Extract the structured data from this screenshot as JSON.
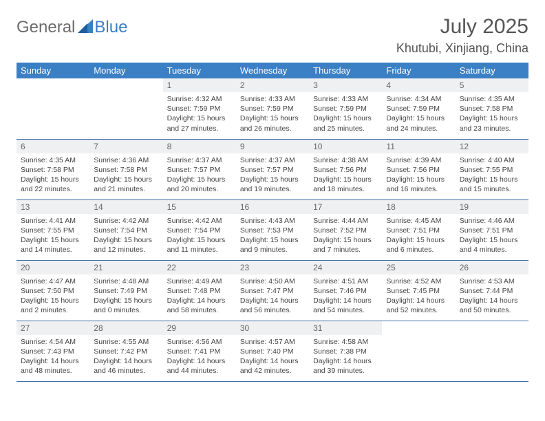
{
  "logo": {
    "general": "General",
    "blue": "Blue"
  },
  "title": "July 2025",
  "location": "Khutubi, Xinjiang, China",
  "colors": {
    "headerBg": "#3b7fc4",
    "headerText": "#ffffff",
    "daynumBg": "#eef0f2",
    "daynumText": "#666666",
    "bodyText": "#444444",
    "rowBorder": "#3b6fa5",
    "logoGray": "#6b6b6b",
    "logoBlue": "#3b7fc4",
    "titleColor": "#555555"
  },
  "dayHeaders": [
    "Sunday",
    "Monday",
    "Tuesday",
    "Wednesday",
    "Thursday",
    "Friday",
    "Saturday"
  ],
  "weeks": [
    [
      null,
      null,
      {
        "n": "1",
        "sr": "4:32 AM",
        "ss": "7:59 PM",
        "dl": "15 hours and 27 minutes."
      },
      {
        "n": "2",
        "sr": "4:33 AM",
        "ss": "7:59 PM",
        "dl": "15 hours and 26 minutes."
      },
      {
        "n": "3",
        "sr": "4:33 AM",
        "ss": "7:59 PM",
        "dl": "15 hours and 25 minutes."
      },
      {
        "n": "4",
        "sr": "4:34 AM",
        "ss": "7:59 PM",
        "dl": "15 hours and 24 minutes."
      },
      {
        "n": "5",
        "sr": "4:35 AM",
        "ss": "7:58 PM",
        "dl": "15 hours and 23 minutes."
      }
    ],
    [
      {
        "n": "6",
        "sr": "4:35 AM",
        "ss": "7:58 PM",
        "dl": "15 hours and 22 minutes."
      },
      {
        "n": "7",
        "sr": "4:36 AM",
        "ss": "7:58 PM",
        "dl": "15 hours and 21 minutes."
      },
      {
        "n": "8",
        "sr": "4:37 AM",
        "ss": "7:57 PM",
        "dl": "15 hours and 20 minutes."
      },
      {
        "n": "9",
        "sr": "4:37 AM",
        "ss": "7:57 PM",
        "dl": "15 hours and 19 minutes."
      },
      {
        "n": "10",
        "sr": "4:38 AM",
        "ss": "7:56 PM",
        "dl": "15 hours and 18 minutes."
      },
      {
        "n": "11",
        "sr": "4:39 AM",
        "ss": "7:56 PM",
        "dl": "15 hours and 16 minutes."
      },
      {
        "n": "12",
        "sr": "4:40 AM",
        "ss": "7:55 PM",
        "dl": "15 hours and 15 minutes."
      }
    ],
    [
      {
        "n": "13",
        "sr": "4:41 AM",
        "ss": "7:55 PM",
        "dl": "15 hours and 14 minutes."
      },
      {
        "n": "14",
        "sr": "4:42 AM",
        "ss": "7:54 PM",
        "dl": "15 hours and 12 minutes."
      },
      {
        "n": "15",
        "sr": "4:42 AM",
        "ss": "7:54 PM",
        "dl": "15 hours and 11 minutes."
      },
      {
        "n": "16",
        "sr": "4:43 AM",
        "ss": "7:53 PM",
        "dl": "15 hours and 9 minutes."
      },
      {
        "n": "17",
        "sr": "4:44 AM",
        "ss": "7:52 PM",
        "dl": "15 hours and 7 minutes."
      },
      {
        "n": "18",
        "sr": "4:45 AM",
        "ss": "7:51 PM",
        "dl": "15 hours and 6 minutes."
      },
      {
        "n": "19",
        "sr": "4:46 AM",
        "ss": "7:51 PM",
        "dl": "15 hours and 4 minutes."
      }
    ],
    [
      {
        "n": "20",
        "sr": "4:47 AM",
        "ss": "7:50 PM",
        "dl": "15 hours and 2 minutes."
      },
      {
        "n": "21",
        "sr": "4:48 AM",
        "ss": "7:49 PM",
        "dl": "15 hours and 0 minutes."
      },
      {
        "n": "22",
        "sr": "4:49 AM",
        "ss": "7:48 PM",
        "dl": "14 hours and 58 minutes."
      },
      {
        "n": "23",
        "sr": "4:50 AM",
        "ss": "7:47 PM",
        "dl": "14 hours and 56 minutes."
      },
      {
        "n": "24",
        "sr": "4:51 AM",
        "ss": "7:46 PM",
        "dl": "14 hours and 54 minutes."
      },
      {
        "n": "25",
        "sr": "4:52 AM",
        "ss": "7:45 PM",
        "dl": "14 hours and 52 minutes."
      },
      {
        "n": "26",
        "sr": "4:53 AM",
        "ss": "7:44 PM",
        "dl": "14 hours and 50 minutes."
      }
    ],
    [
      {
        "n": "27",
        "sr": "4:54 AM",
        "ss": "7:43 PM",
        "dl": "14 hours and 48 minutes."
      },
      {
        "n": "28",
        "sr": "4:55 AM",
        "ss": "7:42 PM",
        "dl": "14 hours and 46 minutes."
      },
      {
        "n": "29",
        "sr": "4:56 AM",
        "ss": "7:41 PM",
        "dl": "14 hours and 44 minutes."
      },
      {
        "n": "30",
        "sr": "4:57 AM",
        "ss": "7:40 PM",
        "dl": "14 hours and 42 minutes."
      },
      {
        "n": "31",
        "sr": "4:58 AM",
        "ss": "7:38 PM",
        "dl": "14 hours and 39 minutes."
      },
      null,
      null
    ]
  ],
  "labels": {
    "sunrise": "Sunrise:",
    "sunset": "Sunset:",
    "daylight": "Daylight:"
  }
}
